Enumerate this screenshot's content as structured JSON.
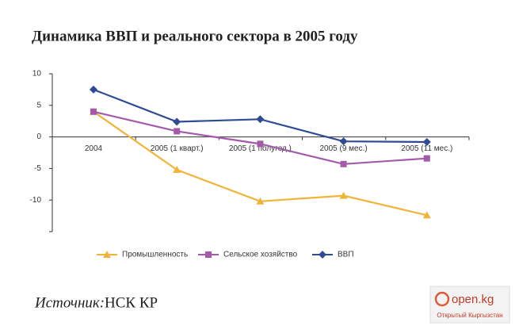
{
  "chart_data": {
    "type": "line",
    "title": "Динамика ВВП и реального сектора в 2005 году",
    "categories": [
      "2004",
      "2005 (1 кварт.)",
      "2005 (1 полугод.)",
      "2005 (9 мес.)",
      "2005 (11 мес.)"
    ],
    "series": [
      {
        "name": "Промышленность",
        "color": "#f0b43a",
        "marker": "triangle",
        "values": [
          4.0,
          -5.2,
          -10.2,
          -9.3,
          -12.4
        ]
      },
      {
        "name": "Сельское хозяйство",
        "color": "#a35aab",
        "marker": "square",
        "values": [
          4.0,
          0.9,
          -1.1,
          -4.3,
          -3.4
        ]
      },
      {
        "name": "ВВП",
        "color": "#2f4b95",
        "marker": "diamond",
        "values": [
          7.5,
          2.4,
          2.8,
          -0.7,
          -0.8
        ]
      }
    ],
    "ylim": [
      -15,
      10
    ],
    "yticks": [
      10,
      5,
      0,
      -5,
      -10
    ],
    "source_label": "Источник:",
    "source": "НСК КР",
    "watermark": {
      "site": "open.kg",
      "caption": "Открытый Кыргызстан"
    }
  }
}
